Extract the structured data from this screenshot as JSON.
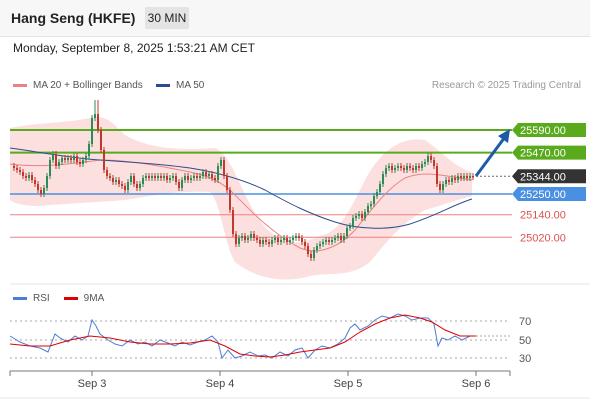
{
  "header": {
    "title": "Hang Seng (HKFE)",
    "timeframe": "30 MIN"
  },
  "datetime": "Monday, September 8, 2025 1:53:21 AM CET",
  "legend": {
    "bollinger": {
      "label": "MA 20 + Bollinger Bands",
      "color": "#f08080"
    },
    "ma50": {
      "label": "MA 50",
      "color": "#2a4d8f"
    }
  },
  "copyright": "Research © 2025 Trading Central",
  "levels": [
    {
      "value": "25590.00",
      "kind": "resistance"
    },
    {
      "value": "25470.00",
      "kind": "resistance"
    },
    {
      "value": "25344.00",
      "kind": "last"
    },
    {
      "value": "25250.00",
      "kind": "pivot"
    },
    {
      "value": "25140.00",
      "kind": "support"
    },
    {
      "value": "25020.00",
      "kind": "support"
    }
  ],
  "rsi": {
    "legend": [
      {
        "label": "RSI",
        "color": "#4a7fd6"
      },
      {
        "label": "9MA",
        "color": "#e00000"
      }
    ],
    "axis": [
      "70",
      "50",
      "30"
    ]
  },
  "x_axis": [
    "Sep 3",
    "Sep 4",
    "Sep 5",
    "Sep 6"
  ],
  "colors": {
    "up": "#2e8b57",
    "down": "#c0392b",
    "resistance": "#5aaa1e",
    "support": "#f08080",
    "pivot": "#4a90e2",
    "last": "#333333",
    "arrow": "#1f5aa8"
  }
}
